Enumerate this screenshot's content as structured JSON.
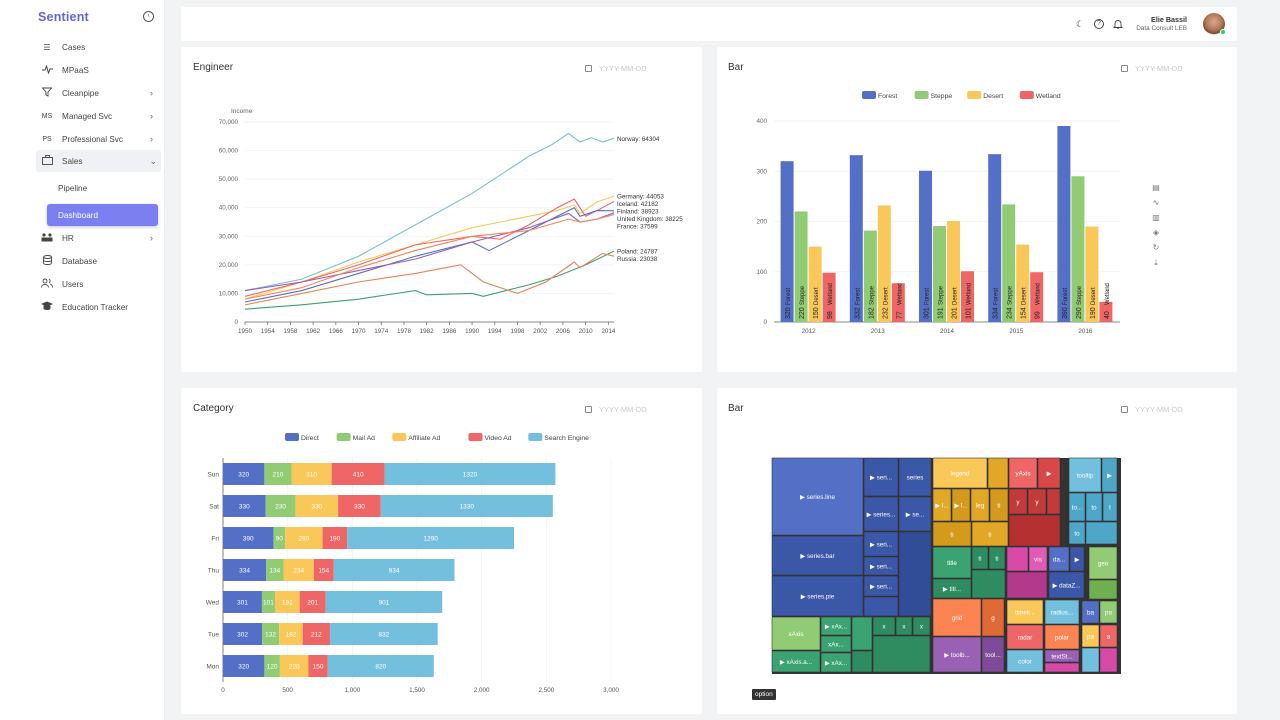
{
  "app": {
    "brand": "Sentient"
  },
  "sidebar": {
    "items": [
      {
        "label": "Cases",
        "icon": "list-icon"
      },
      {
        "label": "MPaaS",
        "icon": "activity-icon"
      },
      {
        "label": "Cleanpipe",
        "icon": "filter-icon"
      },
      {
        "label": "Managed Svc",
        "icon": "ms-icon",
        "icon_text": "MS"
      },
      {
        "label": "Professional Svc",
        "icon": "ps-icon",
        "icon_text": "PS"
      },
      {
        "label": "Sales",
        "icon": "briefcase-icon"
      },
      {
        "label": "HR",
        "icon": "team-icon"
      },
      {
        "label": "Database",
        "icon": "database-icon"
      },
      {
        "label": "Users",
        "icon": "users-icon"
      },
      {
        "label": "Education Tracker",
        "icon": "graduation-icon"
      }
    ],
    "sub_items": [
      "Pipeline",
      "Dashboard"
    ]
  },
  "header": {
    "user_name": "Elie Bassil",
    "user_org": "Data Consult LEB"
  },
  "cards": {
    "engineer": {
      "title": "Engineer",
      "date_placeholder": "YYYY-MM-DD"
    },
    "bar": {
      "title": "Bar",
      "date_placeholder": "YYYY-MM-DD"
    },
    "category": {
      "title": "Category",
      "date_placeholder": "YYYY-MM-DD"
    },
    "treemap": {
      "title": "Bar",
      "date_placeholder": "YYYY-MM-DD",
      "tooltip": "option"
    }
  },
  "colors": {
    "accent": "#6266d6",
    "active_bg": "#7b7ff0",
    "blue": "#5470c6",
    "green": "#91cc75",
    "yellow": "#fac858",
    "red": "#ee6666",
    "cyan": "#73c0de",
    "orange": "#fc8452"
  },
  "chart_data": [
    {
      "type": "line",
      "title": "Engineer",
      "ylabel": "Income",
      "ylim": [
        0,
        70000
      ],
      "yticks": [
        "0",
        "10,000",
        "20,000",
        "30,000",
        "40,000",
        "50,000",
        "60,000",
        "70,000"
      ],
      "xticks": [
        "1950",
        "1954",
        "1958",
        "1962",
        "1966",
        "1970",
        "1974",
        "1978",
        "1982",
        "1986",
        "1990",
        "1994",
        "1998",
        "2002",
        "2006",
        "2010",
        "2014"
      ],
      "xlim": [
        1950,
        2015
      ],
      "series": [
        {
          "name": "Norway",
          "end_label": "Norway: 64304",
          "color": "#73c0de",
          "x": [
            1950,
            1960,
            1970,
            1980,
            1990,
            2000,
            2004,
            2007,
            2009,
            2011,
            2013,
            2015
          ],
          "values": [
            11000,
            15000,
            23000,
            34000,
            45000,
            58000,
            62000,
            66000,
            63000,
            64500,
            63000,
            64304
          ]
        },
        {
          "name": "Germany",
          "end_label": "Germany: 44053",
          "color": "#fac858",
          "x": [
            1950,
            1960,
            1970,
            1980,
            1990,
            1995,
            2000,
            2005,
            2008,
            2009,
            2012,
            2015
          ],
          "values": [
            8000,
            14000,
            21000,
            27000,
            33000,
            35000,
            37000,
            39000,
            41000,
            38000,
            42000,
            44053
          ]
        },
        {
          "name": "Iceland",
          "end_label": "Iceland: 42182",
          "color": "#ee6666",
          "x": [
            1950,
            1960,
            1970,
            1980,
            1990,
            1995,
            2000,
            2005,
            2008,
            2010,
            2012,
            2015
          ],
          "values": [
            9000,
            14000,
            20000,
            27000,
            30000,
            29000,
            34000,
            40000,
            43000,
            37000,
            39000,
            42182
          ]
        },
        {
          "name": "Finland",
          "end_label": "Finland: 38923",
          "color": "#5470c6",
          "x": [
            1950,
            1960,
            1970,
            1980,
            1990,
            1993,
            2000,
            2005,
            2008,
            2009,
            2012,
            2015
          ],
          "values": [
            7000,
            11000,
            17000,
            23000,
            28000,
            25000,
            32000,
            37000,
            40000,
            37000,
            39000,
            38923
          ]
        },
        {
          "name": "United Kingdom",
          "end_label": "United Kingdom: 38225",
          "color": "#9a60b4",
          "x": [
            1950,
            1960,
            1970,
            1980,
            1990,
            2000,
            2007,
            2009,
            2012,
            2015
          ],
          "values": [
            11000,
            14000,
            18000,
            22000,
            28000,
            33000,
            38000,
            35000,
            36000,
            38225
          ]
        },
        {
          "name": "France",
          "end_label": "France: 37599",
          "color": "#fc8452",
          "x": [
            1950,
            1960,
            1970,
            1980,
            1990,
            2000,
            2007,
            2009,
            2012,
            2015
          ],
          "values": [
            8000,
            12000,
            19000,
            25000,
            30000,
            32000,
            36000,
            35000,
            36000,
            37599
          ]
        },
        {
          "name": "Poland",
          "end_label": "Poland: 24787",
          "color": "#3ba272",
          "x": [
            1950,
            1960,
            1970,
            1980,
            1982,
            1990,
            1992,
            2000,
            2005,
            2010,
            2015
          ],
          "values": [
            4500,
            6000,
            8000,
            11000,
            9500,
            10000,
            9000,
            13000,
            16000,
            20000,
            24787
          ]
        },
        {
          "name": "Russia",
          "end_label": "Russia: 23038",
          "color": "#e8825a",
          "x": [
            1950,
            1960,
            1970,
            1980,
            1988,
            1992,
            1998,
            2003,
            2008,
            2009,
            2013,
            2015
          ],
          "values": [
            6000,
            10000,
            14000,
            17000,
            20000,
            14000,
            10000,
            14000,
            21000,
            19000,
            24000,
            23038
          ]
        }
      ]
    },
    {
      "type": "bar",
      "title": "Bar",
      "categories": [
        "2012",
        "2013",
        "2014",
        "2015",
        "2016"
      ],
      "ylim": [
        0,
        400
      ],
      "yticks": [
        "0",
        "100",
        "200",
        "300",
        "400"
      ],
      "series": [
        {
          "name": "Forest",
          "color": "#5470c6",
          "values": [
            320,
            332,
            301,
            334,
            390
          ]
        },
        {
          "name": "Steppe",
          "color": "#91cc75",
          "values": [
            220,
            182,
            191,
            234,
            290
          ]
        },
        {
          "name": "Desert",
          "color": "#fac858",
          "values": [
            150,
            232,
            201,
            154,
            190
          ]
        },
        {
          "name": "Wetland",
          "color": "#ee6666",
          "values": [
            98,
            77,
            101,
            99,
            40
          ]
        }
      ]
    },
    {
      "type": "bar",
      "orientation": "horizontal-stacked",
      "title": "Category",
      "categories": [
        "Mon",
        "Tue",
        "Wed",
        "Thu",
        "Fri",
        "Sat",
        "Sun"
      ],
      "xlim": [
        0,
        3000
      ],
      "xticks": [
        "0",
        "500",
        "1,000",
        "1,500",
        "2,000",
        "2,500",
        "3,000"
      ],
      "series": [
        {
          "name": "Direct",
          "color": "#5470c6",
          "values": [
            320,
            302,
            301,
            334,
            390,
            330,
            320
          ]
        },
        {
          "name": "Mail Ad",
          "color": "#91cc75",
          "values": [
            120,
            132,
            101,
            134,
            90,
            230,
            210
          ]
        },
        {
          "name": "Affiliate Ad",
          "color": "#fac858",
          "values": [
            220,
            182,
            191,
            234,
            290,
            330,
            310
          ]
        },
        {
          "name": "Video Ad",
          "color": "#ee6666",
          "values": [
            150,
            212,
            201,
            154,
            190,
            330,
            410
          ]
        },
        {
          "name": "Search Engine",
          "color": "#73c0de",
          "values": [
            820,
            832,
            901,
            934,
            1290,
            1330,
            1320
          ]
        }
      ]
    },
    {
      "type": "treemap",
      "title": "Bar",
      "labels": [
        "▶ series.line",
        "▶ seri...",
        "series",
        "▶ series...",
        "▶ se...",
        "▶ series.bar",
        "▶ seri...",
        "▶ seri...",
        "▶ series.pie",
        "▶ seri...",
        "legend",
        "▶ l...",
        "▶ l...",
        "leg",
        "ti",
        "ti",
        "ti",
        "yAxis",
        "▶",
        "y",
        "y",
        "tooltip",
        "▶",
        "to...",
        "to",
        "t",
        "to",
        "title",
        "ti",
        "ti",
        "▶ titl...",
        "vis",
        "da...",
        "▶",
        "▶ dataZ...",
        "geo",
        "grid",
        "g",
        "timeli...",
        "radius...",
        "ba",
        "pa",
        "radar",
        "polar",
        "pa",
        "a",
        "color",
        "textSt...",
        "xAxis",
        "▶ xAx...",
        "xAx...",
        "x",
        "x",
        "x",
        "▶ xAxis.a...",
        "▶ xAx...",
        "▶ toolb...",
        "tool..."
      ]
    }
  ]
}
